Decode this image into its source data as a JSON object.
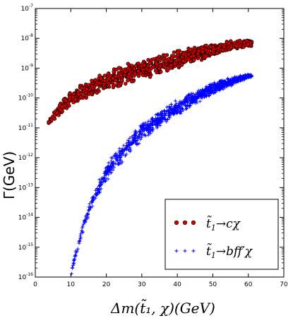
{
  "chart_data": {
    "type": "scatter",
    "xlabel": "Δm(t̃₁, χ)(GeV)",
    "ylabel": "Γ(GeV)",
    "xscale": "linear",
    "yscale": "log",
    "xlim": [
      0,
      70
    ],
    "ylim": [
      1e-16,
      1e-07
    ],
    "x_ticks": [
      "0",
      "10",
      "20",
      "30",
      "40",
      "50",
      "60",
      "70"
    ],
    "y_ticks": [
      {
        "base": "10",
        "exp": "-16"
      },
      {
        "base": "10",
        "exp": "-15"
      },
      {
        "base": "10",
        "exp": "-14"
      },
      {
        "base": "10",
        "exp": "-13"
      },
      {
        "base": "10",
        "exp": "-12"
      },
      {
        "base": "10",
        "exp": "-11"
      },
      {
        "base": "10",
        "exp": "-10"
      },
      {
        "base": "10",
        "exp": "-9"
      },
      {
        "base": "10",
        "exp": "-8"
      },
      {
        "base": "10",
        "exp": "-7"
      }
    ],
    "grid": false,
    "legend_position": "bottom-right",
    "series": [
      {
        "name": "t̃₁ → cχ",
        "marker": "circle",
        "color": "#d40000",
        "edge_color": "#000000",
        "x": [
          3.5,
          4.5,
          6,
          8,
          10,
          12,
          15,
          18,
          20,
          22,
          25,
          27,
          30,
          32,
          35,
          37,
          40,
          42,
          45,
          47,
          50,
          52,
          55,
          57,
          60,
          61
        ],
        "y_low": [
          8e-12,
          1.3e-11,
          2e-11,
          3.5e-11,
          5e-11,
          7e-11,
          1e-10,
          1.3e-10,
          1.6e-10,
          1.9e-10,
          2.5e-10,
          3e-10,
          3.8e-10,
          4.5e-10,
          6e-10,
          7e-10,
          9e-10,
          1.1e-09,
          1.5e-09,
          1.8e-09,
          2.5e-09,
          3e-09,
          4e-09,
          4.5e-09,
          5e-09,
          5.5e-09
        ],
        "y_high": [
          1.5e-11,
          3e-11,
          6e-11,
          1.2e-10,
          1.8e-10,
          2.5e-10,
          4e-10,
          6e-10,
          8e-10,
          1e-09,
          1.3e-09,
          1.6e-09,
          2e-09,
          2.3e-09,
          2.8e-09,
          3.2e-09,
          4e-09,
          4.5e-09,
          5.5e-09,
          6e-09,
          7e-09,
          7.5e-09,
          8.5e-09,
          9e-09,
          9e-09,
          8e-09
        ]
      },
      {
        "name": "t̃₁ → bff′χ",
        "marker": "plus",
        "color": "#0000ff",
        "x": [
          10,
          11,
          12,
          13,
          14,
          15,
          16,
          18,
          20,
          22,
          25,
          27,
          30,
          32,
          35,
          37,
          40,
          42,
          45,
          47,
          50,
          52,
          55,
          57,
          60,
          61
        ],
        "y_low": [
          1e-16,
          3e-16,
          8e-16,
          2e-15,
          5e-15,
          1e-14,
          2e-14,
          6e-14,
          1.5e-13,
          3e-13,
          8e-13,
          1.5e-12,
          3.5e-12,
          5.5e-12,
          1e-11,
          1.5e-11,
          2.5e-11,
          3.5e-11,
          6e-11,
          8e-11,
          1.3e-10,
          1.7e-10,
          2.5e-10,
          3.2e-10,
          4.5e-10,
          5e-10
        ],
        "y_high": [
          2e-16,
          6e-16,
          1.5e-15,
          4e-15,
          1e-14,
          2.5e-14,
          6e-14,
          2e-13,
          6e-13,
          1.3e-12,
          3.5e-12,
          6e-12,
          1.5e-11,
          2.2e-11,
          4e-11,
          5.5e-11,
          9e-11,
          1.2e-10,
          1.8e-10,
          2.3e-10,
          3.3e-10,
          4e-10,
          5e-10,
          5.5e-10,
          6.5e-10,
          6e-10
        ]
      }
    ],
    "legend": [
      {
        "base": "t̃",
        "sub": "1",
        "arrow": "→",
        "rest": "cχ"
      },
      {
        "base": "t̃",
        "sub": "1",
        "arrow": "→",
        "rest": "bff′χ"
      }
    ]
  }
}
